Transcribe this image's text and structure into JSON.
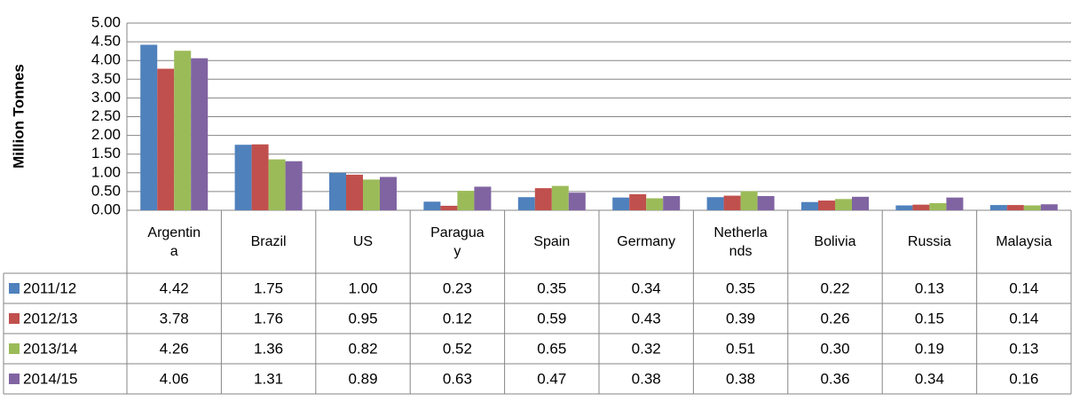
{
  "chart_data": {
    "type": "bar",
    "y_label": "Million Tonnes",
    "categories": [
      "Argentina",
      "Brazil",
      "US",
      "Paraguay",
      "Spain",
      "Germany",
      "Netherlands",
      "Bolivia",
      "Russia",
      "Malaysia"
    ],
    "series": [
      {
        "name": "2011/12",
        "color": "#4F81BD",
        "values": [
          4.42,
          1.75,
          1.0,
          0.23,
          0.35,
          0.34,
          0.35,
          0.22,
          0.13,
          0.14
        ],
        "value_labels": [
          "4.42",
          "1.75",
          "1.00",
          "0.23",
          "0.35",
          "0.34",
          "0.35",
          "0.22",
          "0.13",
          "0.14"
        ]
      },
      {
        "name": "2012/13",
        "color": "#C0504D",
        "values": [
          3.78,
          1.76,
          0.95,
          0.12,
          0.59,
          0.43,
          0.39,
          0.26,
          0.15,
          0.14
        ],
        "value_labels": [
          "3.78",
          "1.76",
          "0.95",
          "0.12",
          "0.59",
          "0.43",
          "0.39",
          "0.26",
          "0.15",
          "0.14"
        ]
      },
      {
        "name": "2013/14",
        "color": "#9BBB59",
        "values": [
          4.26,
          1.36,
          0.82,
          0.52,
          0.65,
          0.32,
          0.51,
          0.3,
          0.19,
          0.13
        ],
        "value_labels": [
          "4.26",
          "1.36",
          "0.82",
          "0.52",
          "0.65",
          "0.32",
          "0.51",
          "0.30",
          "0.19",
          "0.13"
        ]
      },
      {
        "name": "2014/15",
        "color": "#8064A2",
        "values": [
          4.06,
          1.31,
          0.89,
          0.63,
          0.47,
          0.38,
          0.38,
          0.36,
          0.34,
          0.16
        ],
        "value_labels": [
          "4.06",
          "1.31",
          "0.89",
          "0.63",
          "0.47",
          "0.38",
          "0.38",
          "0.36",
          "0.34",
          "0.16"
        ]
      }
    ],
    "ylim": [
      0,
      5
    ],
    "yticks": [
      {
        "value": 0,
        "label": "0.00"
      },
      {
        "value": 0.5,
        "label": "0.50"
      },
      {
        "value": 1,
        "label": "1.00"
      },
      {
        "value": 1.5,
        "label": "1.50"
      },
      {
        "value": 2,
        "label": "2.00"
      },
      {
        "value": 2.5,
        "label": "2.50"
      },
      {
        "value": 3,
        "label": "3.00"
      },
      {
        "value": 3.5,
        "label": "3.50"
      },
      {
        "value": 4,
        "label": "4.00"
      },
      {
        "value": 4.5,
        "label": "4.50"
      },
      {
        "value": 5,
        "label": "5.00"
      }
    ],
    "grid": true
  }
}
